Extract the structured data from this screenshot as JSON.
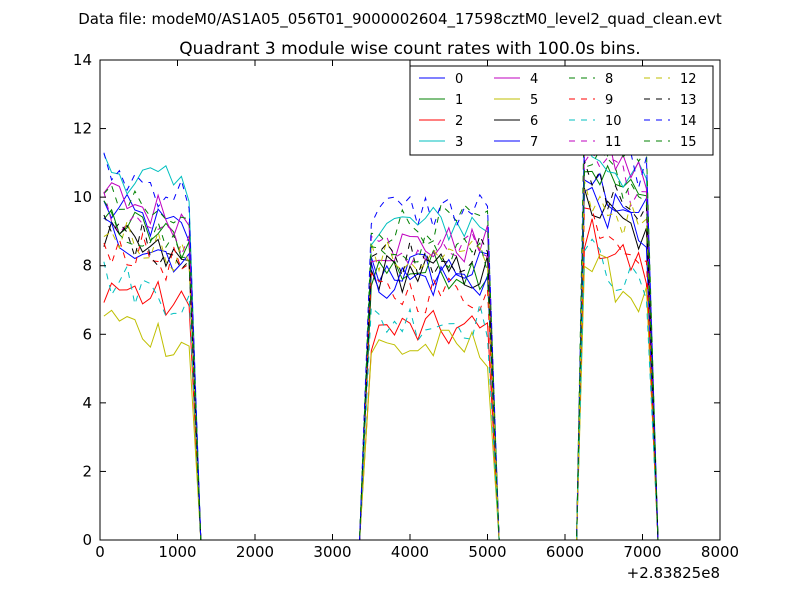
{
  "suptitle": "Data file: modeM0/AS1A05_056T01_9000002604_17598cztM0_level2_quad_clean.evt",
  "chart_data": {
    "type": "line",
    "title": "Quadrant 3 module wise count rates with 100.0s bins.",
    "xlabel": "",
    "ylabel": "",
    "x_offset_label": "+2.83825e8",
    "xlim": [
      0,
      8000
    ],
    "ylim": [
      0,
      14
    ],
    "xticks": [
      0,
      1000,
      2000,
      3000,
      4000,
      5000,
      6000,
      7000,
      8000
    ],
    "yticks": [
      0,
      2,
      4,
      6,
      8,
      10,
      12,
      14
    ],
    "grid": false,
    "legend_position": "top-right",
    "legend_columns": 4,
    "segments": [
      {
        "x_start": 50,
        "x_end": 1150
      },
      {
        "x_start": 3500,
        "x_end": 5050
      },
      {
        "x_start": 6250,
        "x_end": 7050
      }
    ],
    "zero_line": [
      {
        "x": 1350,
        "y": 0
      },
      {
        "x": 3350,
        "y": 0
      },
      {
        "x": 5150,
        "y": 0
      },
      {
        "x": 6150,
        "y": 0
      }
    ],
    "series": [
      {
        "name": "0",
        "color": "#0000ff",
        "dash": "solid",
        "levels": [
          9.2,
          7.9,
          10.0
        ]
      },
      {
        "name": "1",
        "color": "#008000",
        "dash": "solid",
        "levels": [
          8.9,
          7.9,
          10.4
        ]
      },
      {
        "name": "2",
        "color": "#ff0000",
        "dash": "solid",
        "levels": [
          7.0,
          6.1,
          8.4
        ]
      },
      {
        "name": "3",
        "color": "#00bfbf",
        "dash": "solid",
        "levels": [
          10.4,
          9.2,
          10.9
        ]
      },
      {
        "name": "4",
        "color": "#bf00bf",
        "dash": "solid",
        "levels": [
          9.6,
          8.6,
          11.1
        ]
      },
      {
        "name": "5",
        "color": "#bfbf00",
        "dash": "solid",
        "levels": [
          6.0,
          5.6,
          7.5
        ]
      },
      {
        "name": "6",
        "color": "#000000",
        "dash": "solid",
        "levels": [
          8.3,
          7.8,
          9.3
        ]
      },
      {
        "name": "7",
        "color": "#0000ff",
        "dash": "solid",
        "levels": [
          8.5,
          7.6,
          9.5
        ]
      },
      {
        "name": "8",
        "color": "#008000",
        "dash": "dashed",
        "levels": [
          9.4,
          9.2,
          11.5
        ]
      },
      {
        "name": "9",
        "color": "#ff0000",
        "dash": "dashed",
        "levels": [
          8.2,
          7.2,
          9.0
        ]
      },
      {
        "name": "10",
        "color": "#00bfbf",
        "dash": "dashed",
        "levels": [
          7.2,
          6.4,
          7.8
        ]
      },
      {
        "name": "11",
        "color": "#bf00bf",
        "dash": "dashed",
        "levels": [
          9.1,
          8.4,
          10.5
        ]
      },
      {
        "name": "12",
        "color": "#bfbf00",
        "dash": "dashed",
        "levels": [
          8.6,
          8.2,
          9.6
        ]
      },
      {
        "name": "13",
        "color": "#000000",
        "dash": "dashed",
        "levels": [
          8.6,
          8.3,
          10.0
        ]
      },
      {
        "name": "14",
        "color": "#0000ff",
        "dash": "dashed",
        "levels": [
          10.3,
          9.6,
          11.3
        ]
      },
      {
        "name": "15",
        "color": "#008000",
        "dash": "dashed",
        "levels": [
          8.8,
          8.4,
          10.5
        ]
      }
    ]
  }
}
